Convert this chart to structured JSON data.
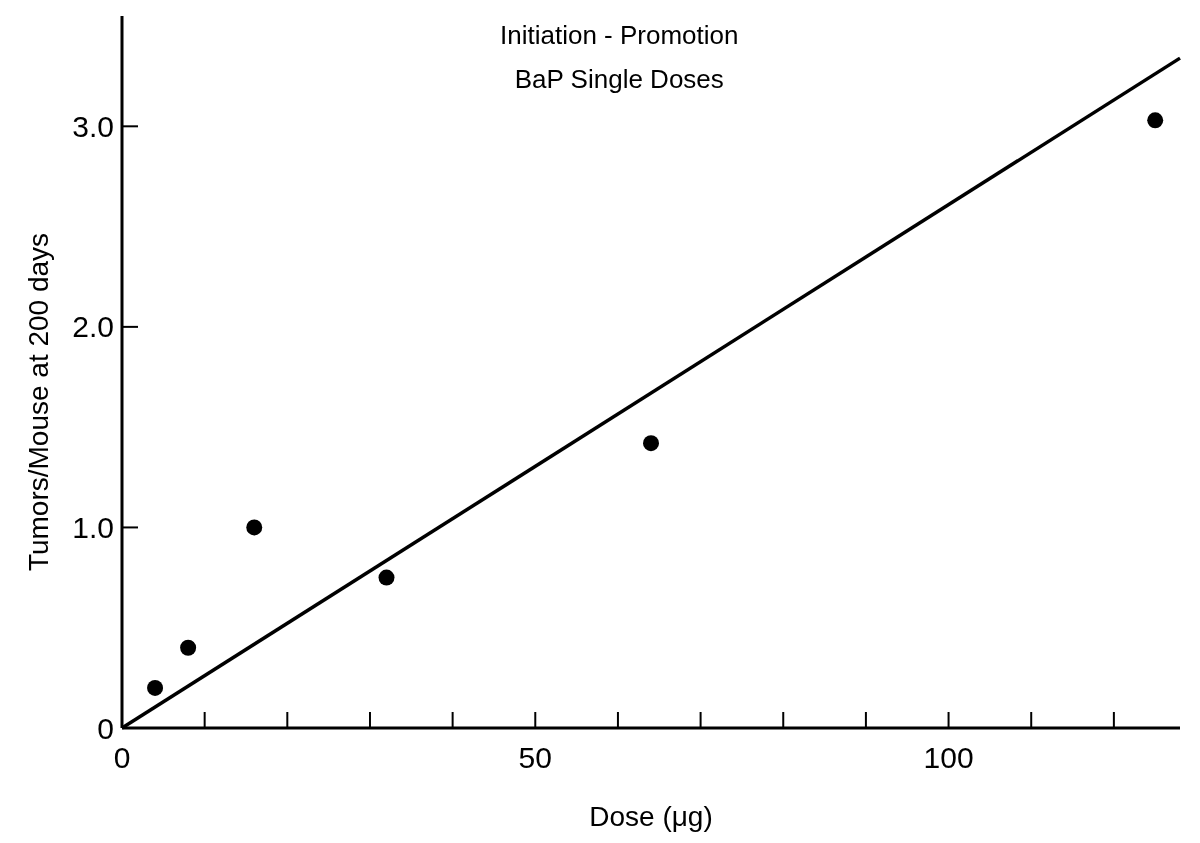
{
  "chart_data": {
    "type": "scatter",
    "title": "Initiation - Promotion",
    "subtitle": "BaP Single Doses",
    "xlabel": "Dose (μg)",
    "ylabel": "Tumors/Mouse at 200 days",
    "x": [
      4,
      8,
      16,
      32,
      64,
      125
    ],
    "values": [
      0.2,
      0.4,
      1.0,
      0.75,
      1.42,
      3.03
    ],
    "color": "#000000",
    "marker": "circle",
    "series": [
      {
        "type": "line",
        "x": [
          0,
          128
        ],
        "values": [
          0,
          3.34
        ],
        "color": "#000000",
        "line_style": "solid",
        "marker": "none"
      }
    ],
    "xlim": [
      0,
      128
    ],
    "ylim": [
      0,
      3.55
    ],
    "xticks": [
      0,
      {
        "value": 10,
        "label": null
      },
      {
        "value": 20,
        "label": null
      },
      {
        "value": 30,
        "label": null
      },
      {
        "value": 40,
        "label": null
      },
      50,
      {
        "value": 60,
        "label": null
      },
      {
        "value": 70,
        "label": null
      },
      {
        "value": 80,
        "label": null
      },
      {
        "value": 90,
        "label": null
      },
      100,
      {
        "value": 110,
        "label": null
      },
      {
        "value": 120,
        "label": null
      }
    ],
    "yticks": [
      0,
      {
        "value": 1,
        "label": "1.0"
      },
      {
        "value": 2,
        "label": "2.0"
      },
      {
        "value": 3,
        "label": "3.0"
      }
    ],
    "grid": false
  }
}
